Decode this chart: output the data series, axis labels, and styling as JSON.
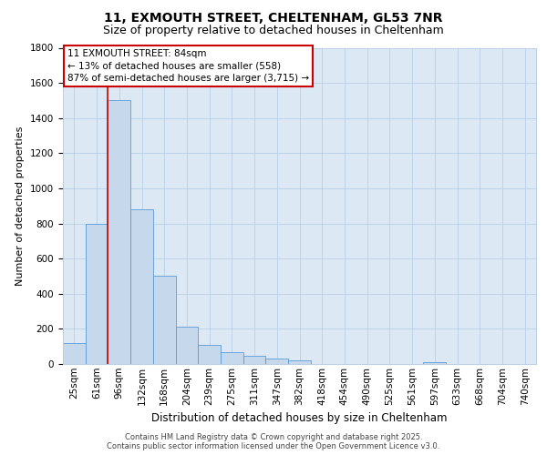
{
  "title_line1": "11, EXMOUTH STREET, CHELTENHAM, GL53 7NR",
  "title_line2": "Size of property relative to detached houses in Cheltenham",
  "xlabel": "Distribution of detached houses by size in Cheltenham",
  "ylabel": "Number of detached properties",
  "categories": [
    "25sqm",
    "61sqm",
    "96sqm",
    "132sqm",
    "168sqm",
    "204sqm",
    "239sqm",
    "275sqm",
    "311sqm",
    "347sqm",
    "382sqm",
    "418sqm",
    "454sqm",
    "490sqm",
    "525sqm",
    "561sqm",
    "597sqm",
    "633sqm",
    "668sqm",
    "704sqm",
    "740sqm"
  ],
  "values": [
    120,
    800,
    1500,
    880,
    500,
    210,
    110,
    65,
    45,
    30,
    20,
    0,
    0,
    0,
    0,
    0,
    10,
    0,
    0,
    0,
    0
  ],
  "bar_color": "#c6d9ec",
  "bar_edge_color": "#5b9bd5",
  "annotation_box_text": "11 EXMOUTH STREET: 84sqm\n← 13% of detached houses are smaller (558)\n87% of semi-detached houses are larger (3,715) →",
  "annotation_box_color": "#cc0000",
  "vline_x": 1.5,
  "ylim_max": 1800,
  "ylim_min": 0,
  "yticks": [
    0,
    200,
    400,
    600,
    800,
    1000,
    1200,
    1400,
    1600,
    1800
  ],
  "footer_line1": "Contains HM Land Registry data © Crown copyright and database right 2025.",
  "footer_line2": "Contains public sector information licensed under the Open Government Licence v3.0.",
  "bg_color": "#ffffff",
  "plot_bg_color": "#dce9f5",
  "grid_color": "#b8cfe8",
  "title1_fontsize": 10,
  "title2_fontsize": 9,
  "ylabel_fontsize": 8,
  "xlabel_fontsize": 8.5,
  "tick_fontsize": 7.5,
  "annot_fontsize": 7.5
}
